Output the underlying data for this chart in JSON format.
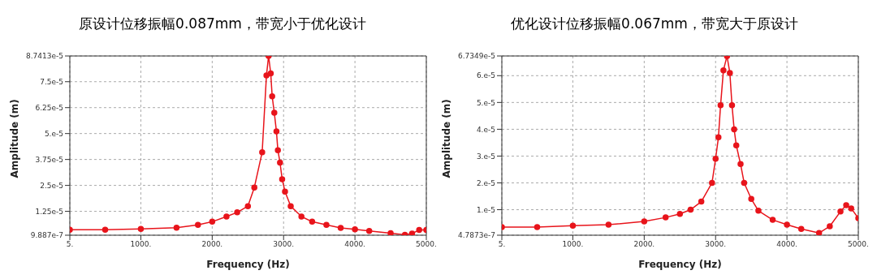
{
  "chart_data": [
    {
      "type": "line",
      "title": "原设计位移振幅0.087mm，带宽小于优化设计",
      "xlabel": "Frequency (Hz)",
      "ylabel": "Amplitude (m)",
      "color": "#e8141b",
      "marker": "circle",
      "grid": true,
      "x": [
        5,
        500,
        1000,
        1500,
        1800,
        2000,
        2200,
        2350,
        2500,
        2590,
        2700,
        2760,
        2790,
        2820,
        2840,
        2870,
        2900,
        2920,
        2950,
        2980,
        3020,
        3100,
        3250,
        3400,
        3600,
        3800,
        4000,
        4200,
        4500,
        4700,
        4800,
        4900,
        5000
      ],
      "values": [
        3.6e-06,
        3.6e-06,
        4e-06,
        4.6e-06,
        6e-06,
        7.5e-06,
        1e-05,
        1.2e-05,
        1.5e-05,
        2.4e-05,
        4.1e-05,
        7.8e-05,
        8.74e-05,
        7.9e-05,
        6.8e-05,
        6e-05,
        5.1e-05,
        4.2e-05,
        3.6e-05,
        2.8e-05,
        2.2e-05,
        1.5e-05,
        1e-05,
        7.5e-06,
        6e-06,
        4.5e-06,
        3.8e-06,
        3e-06,
        2e-06,
        1.2e-06,
        1.8e-06,
        3.5e-06,
        3.5e-06
      ],
      "xlim": [
        5,
        5000
      ],
      "xticks": [
        {
          "value": 5,
          "label": "5."
        },
        {
          "value": 1000,
          "label": "1000."
        },
        {
          "value": 2000,
          "label": "2000."
        },
        {
          "value": 3000,
          "label": "3000."
        },
        {
          "value": 4000,
          "label": "4000."
        },
        {
          "value": 5000,
          "label": "5000."
        }
      ],
      "ylim": [
        9.887e-07,
        8.7413e-05
      ],
      "yticks": [
        {
          "value": 9.887e-07,
          "label": "9.887e-7"
        },
        {
          "value": 1.25e-05,
          "label": "1.25e-5"
        },
        {
          "value": 2.5e-05,
          "label": "2.5e-5"
        },
        {
          "value": 3.75e-05,
          "label": "3.75e-5"
        },
        {
          "value": 5e-05,
          "label": "5.e-5"
        },
        {
          "value": 6.25e-05,
          "label": "6.25e-5"
        },
        {
          "value": 7.5e-05,
          "label": "7.5e-5"
        },
        {
          "value": 8.7413e-05,
          "label": "8.7413e-5"
        }
      ]
    },
    {
      "type": "line",
      "title": "优化设计位移振幅0.067mm，带宽大于原设计",
      "xlabel": "Frequency (Hz)",
      "ylabel": "Amplitude (m)",
      "color": "#e8141b",
      "marker": "circle",
      "grid": true,
      "x": [
        5,
        500,
        1000,
        1500,
        2000,
        2300,
        2500,
        2650,
        2800,
        2950,
        3000,
        3040,
        3070,
        3110,
        3160,
        3200,
        3230,
        3260,
        3290,
        3350,
        3400,
        3500,
        3600,
        3800,
        4000,
        4200,
        4450,
        4600,
        4750,
        4830,
        4900,
        5000
      ],
      "values": [
        3.5e-06,
        3.5e-06,
        4e-06,
        4.4e-06,
        5.6e-06,
        7.1e-06,
        8.4e-06,
        1e-05,
        1.3e-05,
        2e-05,
        2.9e-05,
        3.7e-05,
        4.9e-05,
        6.2e-05,
        6.73e-05,
        6.1e-05,
        4.9e-05,
        4e-05,
        3.4e-05,
        2.7e-05,
        2e-05,
        1.4e-05,
        9.6e-06,
        6.2e-06,
        4.4e-06,
        2.8e-06,
        1.3e-06,
        3.8e-06,
        9.3e-06,
        1.17e-05,
        1.05e-05,
        6.8e-06
      ],
      "xlim": [
        5,
        5000
      ],
      "xticks": [
        {
          "value": 5,
          "label": "5."
        },
        {
          "value": 1000,
          "label": "1000."
        },
        {
          "value": 2000,
          "label": "2000."
        },
        {
          "value": 3000,
          "label": "3000."
        },
        {
          "value": 4000,
          "label": "4000."
        },
        {
          "value": 5000,
          "label": "5000."
        }
      ],
      "ylim": [
        4.7873e-07,
        6.7349e-05
      ],
      "yticks": [
        {
          "value": 4.7873e-07,
          "label": "4.7873e-7"
        },
        {
          "value": 1e-05,
          "label": "1.e-5"
        },
        {
          "value": 2e-05,
          "label": "2.e-5"
        },
        {
          "value": 3e-05,
          "label": "3.e-5"
        },
        {
          "value": 4e-05,
          "label": "4.e-5"
        },
        {
          "value": 5e-05,
          "label": "5.e-5"
        },
        {
          "value": 6e-05,
          "label": "6.e-5"
        },
        {
          "value": 6.7349e-05,
          "label": "6.7349e-5"
        }
      ]
    }
  ]
}
